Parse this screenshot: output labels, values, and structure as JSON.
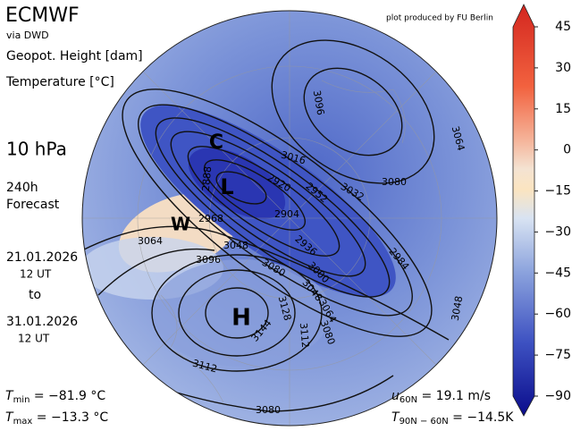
{
  "header": {
    "title": "ECMWF",
    "source": "via DWD",
    "credit": "plot produced by FU Berlin"
  },
  "fields": {
    "height": "Geopot. Height [dam]",
    "temperature": "Temperature [°C]"
  },
  "level": "10 hPa",
  "forecast": {
    "lead": "240h",
    "kind": "Forecast",
    "start_date": "21.01.2026",
    "start_time": "12 UT",
    "to": "to",
    "end_date": "31.01.2026",
    "end_time": "12 UT"
  },
  "stats": {
    "tmin": {
      "symbol": "T",
      "sub": "min",
      "text": " = −81.9 °C"
    },
    "tmax": {
      "symbol": "T",
      "sub": "max",
      "text": " = −13.3 °C"
    },
    "u60": {
      "symbol": "u",
      "sub": "60N",
      "text": " = 19.1 m/s"
    },
    "tdiff": {
      "symbol": "T",
      "sub": "90N − 60N",
      "text": " = −14.5K"
    }
  },
  "markers": {
    "cold": "C",
    "low": "L",
    "warm": "W",
    "high": "H"
  },
  "contour_labels": [
    "3096",
    "3016",
    "3032",
    "3080",
    "3064",
    "2888",
    "2920",
    "2952",
    "2904",
    "2968",
    "2936",
    "3064",
    "3048",
    "3096",
    "3080",
    "3000",
    "2984",
    "3048",
    "3064",
    "3080",
    "3128",
    "3112",
    "3144",
    "3112",
    "3080",
    "3048"
  ],
  "colorbar": {
    "lim": [
      -90,
      45
    ],
    "ticks": [
      45,
      30,
      15,
      0,
      {
        "value": -15,
        "label": "−15"
      },
      {
        "value": -30,
        "label": "−30"
      },
      {
        "value": -45,
        "label": "−45"
      },
      {
        "value": -60,
        "label": "−60"
      },
      {
        "value": -75,
        "label": "−75"
      },
      {
        "value": -90,
        "label": "−90"
      }
    ]
  }
}
